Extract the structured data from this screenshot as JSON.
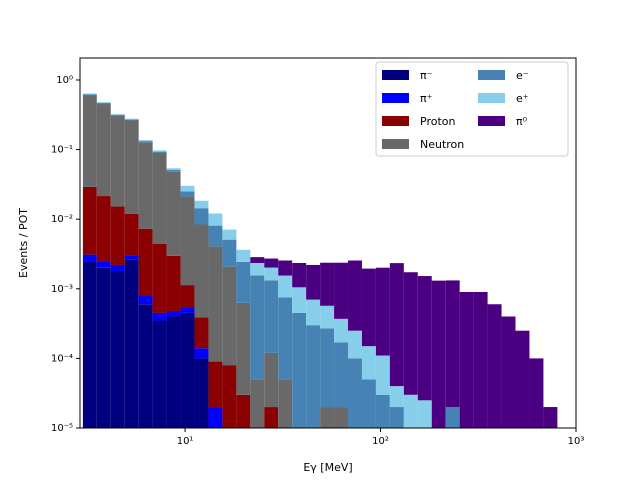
{
  "chart_data": {
    "type": "histogram",
    "stacked": true,
    "xlabel": "Eγ [MeV]",
    "ylabel": "Events / POT",
    "xscale": "log",
    "yscale": "log",
    "xlim": [
      2.9,
      1000
    ],
    "ylim": [
      1e-05,
      2.07
    ],
    "xticks": [
      {
        "value": 10,
        "label": "10¹"
      },
      {
        "value": 100,
        "label": "10²"
      },
      {
        "value": 1000,
        "label": "10³"
      }
    ],
    "yticks": [
      {
        "value": 1e-05,
        "label": "10⁻⁵"
      },
      {
        "value": 0.0001,
        "label": "10⁻⁴"
      },
      {
        "value": 0.001,
        "label": "10⁻³"
      },
      {
        "value": 0.01,
        "label": "10⁻²"
      },
      {
        "value": 0.1,
        "label": "10⁻¹"
      },
      {
        "value": 1,
        "label": "10⁰"
      }
    ],
    "legend": "upper right",
    "bins": [
      3.0,
      3.535,
      4.166,
      4.911,
      5.788,
      6.823,
      8.04,
      9.48,
      11.17,
      13.17,
      15.52,
      18.3,
      21.57,
      25.42,
      29.96,
      35.32,
      41.63,
      49.07,
      57.84,
      68.18,
      80.35,
      94.71,
      111.6,
      131.6,
      155.1,
      182.8,
      215.5,
      254.0,
      299.4,
      352.9,
      416.0,
      490.3,
      578.0,
      681.3,
      803.0
    ],
    "series": [
      {
        "name": "π⁻",
        "color": "#000080",
        "values": [
          0.0025,
          0.002,
          0.0018,
          0.0026,
          0.0006,
          0.00035,
          0.0004,
          0.00045,
          0.0001,
          0,
          0,
          0,
          0,
          0,
          0,
          0,
          0,
          0,
          0,
          0,
          0,
          0,
          0,
          0,
          0,
          0,
          0,
          0,
          0,
          0,
          0,
          0,
          0,
          0
        ]
      },
      {
        "name": "π⁺",
        "color": "#0000ff",
        "values": [
          0.0006,
          0.0005,
          0.0004,
          0.0004,
          0.0002,
          0.0001,
          8e-05,
          8e-05,
          4e-05,
          2e-05,
          0,
          0,
          0,
          0,
          0,
          0,
          0,
          0,
          0,
          0,
          0,
          0,
          0,
          0,
          0,
          0,
          0,
          0,
          0,
          0,
          0,
          0,
          0,
          0
        ]
      },
      {
        "name": "Proton",
        "color": "#8b0000",
        "values": [
          0.026,
          0.019,
          0.013,
          0.009,
          0.0065,
          0.004,
          0.0025,
          0.0006,
          0.00025,
          7e-05,
          8e-05,
          3e-05,
          0,
          2e-05,
          0,
          0,
          0,
          0,
          0,
          0,
          0,
          0,
          0,
          0,
          0,
          0,
          0,
          0,
          0,
          0,
          0,
          0,
          0,
          0
        ]
      },
      {
        "name": "Neutron",
        "color": "#696969",
        "values": [
          0.57,
          0.43,
          0.29,
          0.25,
          0.12,
          0.085,
          0.045,
          0.02,
          0.008,
          0.004,
          0.002,
          0.0006,
          5e-05,
          0.0001,
          5e-05,
          0,
          0,
          2e-05,
          2e-05,
          0,
          0,
          0,
          0,
          0,
          0,
          0,
          0,
          0,
          0,
          0,
          0,
          0,
          0,
          0
        ]
      },
      {
        "name": "e⁻",
        "color": "#4682b4",
        "values": [
          0.02,
          0.015,
          0.01,
          0.008,
          0.005,
          0.004,
          0.003,
          0.004,
          0.006,
          0.004,
          0.003,
          0.0018,
          0.0015,
          0.0012,
          0.0007,
          0.00045,
          0.0003,
          0.00025,
          0.00015,
          0.0001,
          5e-05,
          3e-05,
          2e-05,
          1e-05,
          1e-05,
          1e-05,
          2e-05,
          0,
          0,
          0,
          0,
          0,
          0,
          0
        ]
      },
      {
        "name": "e⁺",
        "color": "#87ceeb",
        "values": [
          0.02,
          0.015,
          0.01,
          0.008,
          0.005,
          0.004,
          0.003,
          0.005,
          0.004,
          0.004,
          0.002,
          0.0012,
          0.0008,
          0.0007,
          0.0008,
          0.0006,
          0.0004,
          0.0003,
          0.0002,
          0.00015,
          0.0001,
          8e-05,
          2e-05,
          2e-05,
          1.5e-05,
          0,
          0,
          0,
          0,
          0,
          0,
          0,
          0,
          0
        ]
      },
      {
        "name": "π⁰",
        "color": "#4b0082",
        "values": [
          0,
          0,
          0,
          0,
          0,
          0,
          0,
          0,
          0,
          0,
          0,
          0,
          0.0005,
          0.0007,
          0.001,
          0.0013,
          0.0015,
          0.0018,
          0.002,
          0.0023,
          0.0018,
          0.0019,
          0.0023,
          0.0017,
          0.0015,
          0.0013,
          0.0013,
          0.0009,
          0.0009,
          0.0006,
          0.0004,
          0.00025,
          0.0001,
          2e-05
        ]
      }
    ]
  }
}
